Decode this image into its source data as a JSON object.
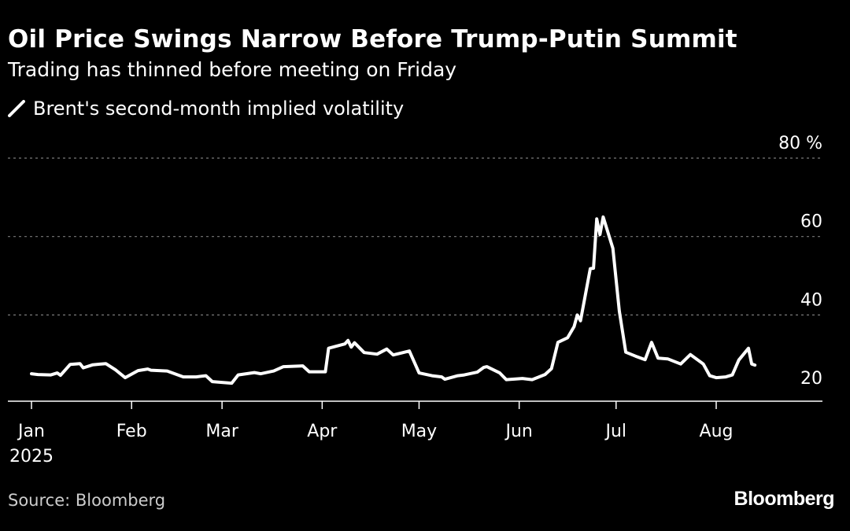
{
  "title": "Oil Price Swings Narrow Before Trump-Putin Summit",
  "subtitle": "Trading has thinned before meeting on Friday",
  "source": "Source: Bloomberg",
  "brand": "Bloomberg",
  "colors": {
    "background": "#000000",
    "line": "#ffffff",
    "grid": "#7a7a7a",
    "text": "#ffffff"
  },
  "chart_data": {
    "type": "line",
    "title": "Oil Price Swings Narrow Before Trump-Putin Summit",
    "subtitle": "Trading has thinned before meeting on Friday",
    "xlabel": "",
    "ylabel": "%",
    "y_unit": "%",
    "ylim": [
      18,
      80
    ],
    "yticks": [
      20,
      40,
      60,
      80
    ],
    "ytick_labels": [
      "20",
      "40",
      "60",
      "80 %"
    ],
    "grid": true,
    "legend": "top-left",
    "x_start_date": "2025-01-01",
    "months": [
      {
        "label": "Jan",
        "date": "2025-01-01",
        "year": "2025"
      },
      {
        "label": "Feb",
        "date": "2025-02-01"
      },
      {
        "label": "Mar",
        "date": "2025-03-01"
      },
      {
        "label": "Apr",
        "date": "2025-04-01"
      },
      {
        "label": "May",
        "date": "2025-05-01"
      },
      {
        "label": "Jun",
        "date": "2025-06-01"
      },
      {
        "label": "Jul",
        "date": "2025-07-01"
      },
      {
        "label": "Aug",
        "date": "2025-08-01"
      }
    ],
    "series": [
      {
        "name": "Brent's second-month implied volatility",
        "points": [
          [
            "2025-01-01",
            25.0
          ],
          [
            "2025-01-03",
            24.8
          ],
          [
            "2025-01-07",
            24.7
          ],
          [
            "2025-01-09",
            25.2
          ],
          [
            "2025-01-10",
            24.6
          ],
          [
            "2025-01-13",
            27.4
          ],
          [
            "2025-01-16",
            27.6
          ],
          [
            "2025-01-17",
            26.5
          ],
          [
            "2025-01-20",
            27.3
          ],
          [
            "2025-01-24",
            27.6
          ],
          [
            "2025-01-27",
            26.0
          ],
          [
            "2025-01-30",
            24.0
          ],
          [
            "2025-02-03",
            25.8
          ],
          [
            "2025-02-06",
            26.2
          ],
          [
            "2025-02-07",
            25.9
          ],
          [
            "2025-02-12",
            25.7
          ],
          [
            "2025-02-17",
            24.2
          ],
          [
            "2025-02-21",
            24.2
          ],
          [
            "2025-02-24",
            24.5
          ],
          [
            "2025-02-26",
            23.0
          ],
          [
            "2025-03-04",
            22.6
          ],
          [
            "2025-03-06",
            24.7
          ],
          [
            "2025-03-11",
            25.3
          ],
          [
            "2025-03-13",
            25.0
          ],
          [
            "2025-03-17",
            25.7
          ],
          [
            "2025-03-20",
            26.8
          ],
          [
            "2025-03-26",
            27.0
          ],
          [
            "2025-03-28",
            25.5
          ],
          [
            "2025-04-02",
            25.5
          ],
          [
            "2025-04-03",
            31.5
          ],
          [
            "2025-04-08",
            32.6
          ],
          [
            "2025-04-09",
            33.5
          ],
          [
            "2025-04-10",
            31.8
          ],
          [
            "2025-04-11",
            32.9
          ],
          [
            "2025-04-14",
            30.4
          ],
          [
            "2025-04-18",
            30.0
          ],
          [
            "2025-04-21",
            31.3
          ],
          [
            "2025-04-23",
            29.8
          ],
          [
            "2025-04-28",
            30.8
          ],
          [
            "2025-05-01",
            25.2
          ],
          [
            "2025-05-05",
            24.5
          ],
          [
            "2025-05-08",
            24.2
          ],
          [
            "2025-05-09",
            23.6
          ],
          [
            "2025-05-13",
            24.5
          ],
          [
            "2025-05-15",
            24.7
          ],
          [
            "2025-05-19",
            25.4
          ],
          [
            "2025-05-21",
            26.6
          ],
          [
            "2025-05-22",
            26.8
          ],
          [
            "2025-05-26",
            25.2
          ],
          [
            "2025-05-28",
            23.5
          ],
          [
            "2025-06-02",
            23.8
          ],
          [
            "2025-06-05",
            23.5
          ],
          [
            "2025-06-09",
            24.8
          ],
          [
            "2025-06-11",
            26.3
          ],
          [
            "2025-06-13",
            33.0
          ],
          [
            "2025-06-16",
            34.2
          ],
          [
            "2025-06-18",
            37.0
          ],
          [
            "2025-06-19",
            40.0
          ],
          [
            "2025-06-20",
            38.5
          ],
          [
            "2025-06-23",
            51.8
          ],
          [
            "2025-06-24",
            51.9
          ],
          [
            "2025-06-25",
            64.5
          ],
          [
            "2025-06-26",
            60.5
          ],
          [
            "2025-06-27",
            65.0
          ],
          [
            "2025-06-30",
            57.0
          ],
          [
            "2025-07-02",
            41.0
          ],
          [
            "2025-07-04",
            30.5
          ],
          [
            "2025-07-07",
            29.5
          ],
          [
            "2025-07-10",
            28.6
          ],
          [
            "2025-07-12",
            33.0
          ],
          [
            "2025-07-14",
            29.0
          ],
          [
            "2025-07-17",
            28.8
          ],
          [
            "2025-07-21",
            27.5
          ],
          [
            "2025-07-24",
            29.9
          ],
          [
            "2025-07-28",
            27.5
          ],
          [
            "2025-07-30",
            24.5
          ],
          [
            "2025-08-01",
            24.0
          ],
          [
            "2025-08-04",
            24.2
          ],
          [
            "2025-08-06",
            24.7
          ],
          [
            "2025-08-08",
            28.5
          ],
          [
            "2025-08-11",
            31.5
          ],
          [
            "2025-08-12",
            27.5
          ],
          [
            "2025-08-13",
            27.2
          ]
        ]
      }
    ]
  }
}
